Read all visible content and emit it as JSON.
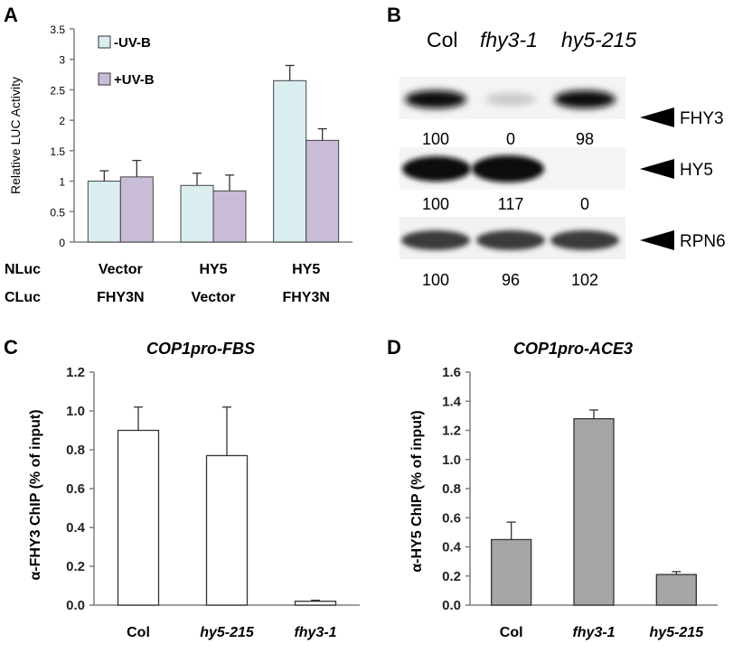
{
  "panels": {
    "A": {
      "letter": "A",
      "row_labels": [
        "NLuc",
        "CLuc"
      ],
      "legend": [
        "-UV-B",
        "+UV-B"
      ]
    },
    "B": {
      "letter": "B",
      "header": [
        "Col",
        "fhy3-1",
        "hy5-215"
      ],
      "blots": [
        {
          "protein": "FHY3",
          "values": [
            "100",
            "0",
            "98"
          ]
        },
        {
          "protein": "HY5",
          "values": [
            "100",
            "117",
            "0"
          ]
        },
        {
          "protein": "RPN6",
          "values": [
            "100",
            "96",
            "102"
          ]
        }
      ]
    },
    "C": {
      "letter": "C"
    },
    "D": {
      "letter": "D"
    }
  },
  "colors": {
    "uvb_minus": "#daeef0",
    "uvb_plus": "#c9bcd7",
    "bar_C": "#ffffff",
    "bar_D": "#a6a6a6",
    "axis": "#7f7f7f"
  },
  "chart_data": [
    {
      "panel": "A",
      "type": "bar",
      "categories": [
        "Vector\nFHY3N",
        "HY5\nVector",
        "HY5\nFHY3N"
      ],
      "category_lines": [
        [
          "Vector",
          "FHY3N"
        ],
        [
          "HY5",
          "Vector"
        ],
        [
          "HY5",
          "FHY3N"
        ]
      ],
      "series": [
        {
          "name": "-UV-B",
          "values": [
            1.0,
            0.93,
            2.65
          ],
          "errors": [
            0.17,
            0.2,
            0.25
          ],
          "color": "#daeef0"
        },
        {
          "name": "+UV-B",
          "values": [
            1.07,
            0.84,
            1.67
          ],
          "errors": [
            0.27,
            0.26,
            0.19
          ],
          "color": "#c9bcd7"
        }
      ],
      "ylabel": "Relative LUC Activity",
      "ylim": [
        0,
        3.5
      ],
      "yticks": [
        "0",
        "0.5",
        "1",
        "1.5",
        "2",
        "2.5",
        "3",
        "3.5"
      ],
      "grid": false,
      "legend": "top-left"
    },
    {
      "panel": "C",
      "type": "bar",
      "title": "COP1pro-FBS",
      "categories": [
        "Col",
        "hy5-215",
        "fhy3-1"
      ],
      "category_italic": [
        false,
        true,
        true
      ],
      "values": [
        0.9,
        0.77,
        0.02
      ],
      "errors": [
        0.12,
        0.25,
        0.005
      ],
      "ylabel": "α-FHY3 ChIP (% of input)",
      "ylim": [
        0,
        1.2
      ],
      "yticks": [
        "0.0",
        "0.2",
        "0.4",
        "0.6",
        "0.8",
        "1.0",
        "1.2"
      ],
      "grid": false
    },
    {
      "panel": "D",
      "type": "bar",
      "title": "COP1pro-ACE3",
      "categories": [
        "Col",
        "fhy3-1",
        "hy5-215"
      ],
      "category_italic": [
        false,
        true,
        true
      ],
      "values": [
        0.45,
        1.28,
        0.21
      ],
      "errors": [
        0.12,
        0.06,
        0.02
      ],
      "ylabel": "α-HY5 ChIP (% of input)",
      "ylim": [
        0,
        1.6
      ],
      "yticks": [
        "0.0",
        "0.2",
        "0.4",
        "0.6",
        "0.8",
        "1.0",
        "1.2",
        "1.4",
        "1.6"
      ],
      "grid": false
    }
  ]
}
